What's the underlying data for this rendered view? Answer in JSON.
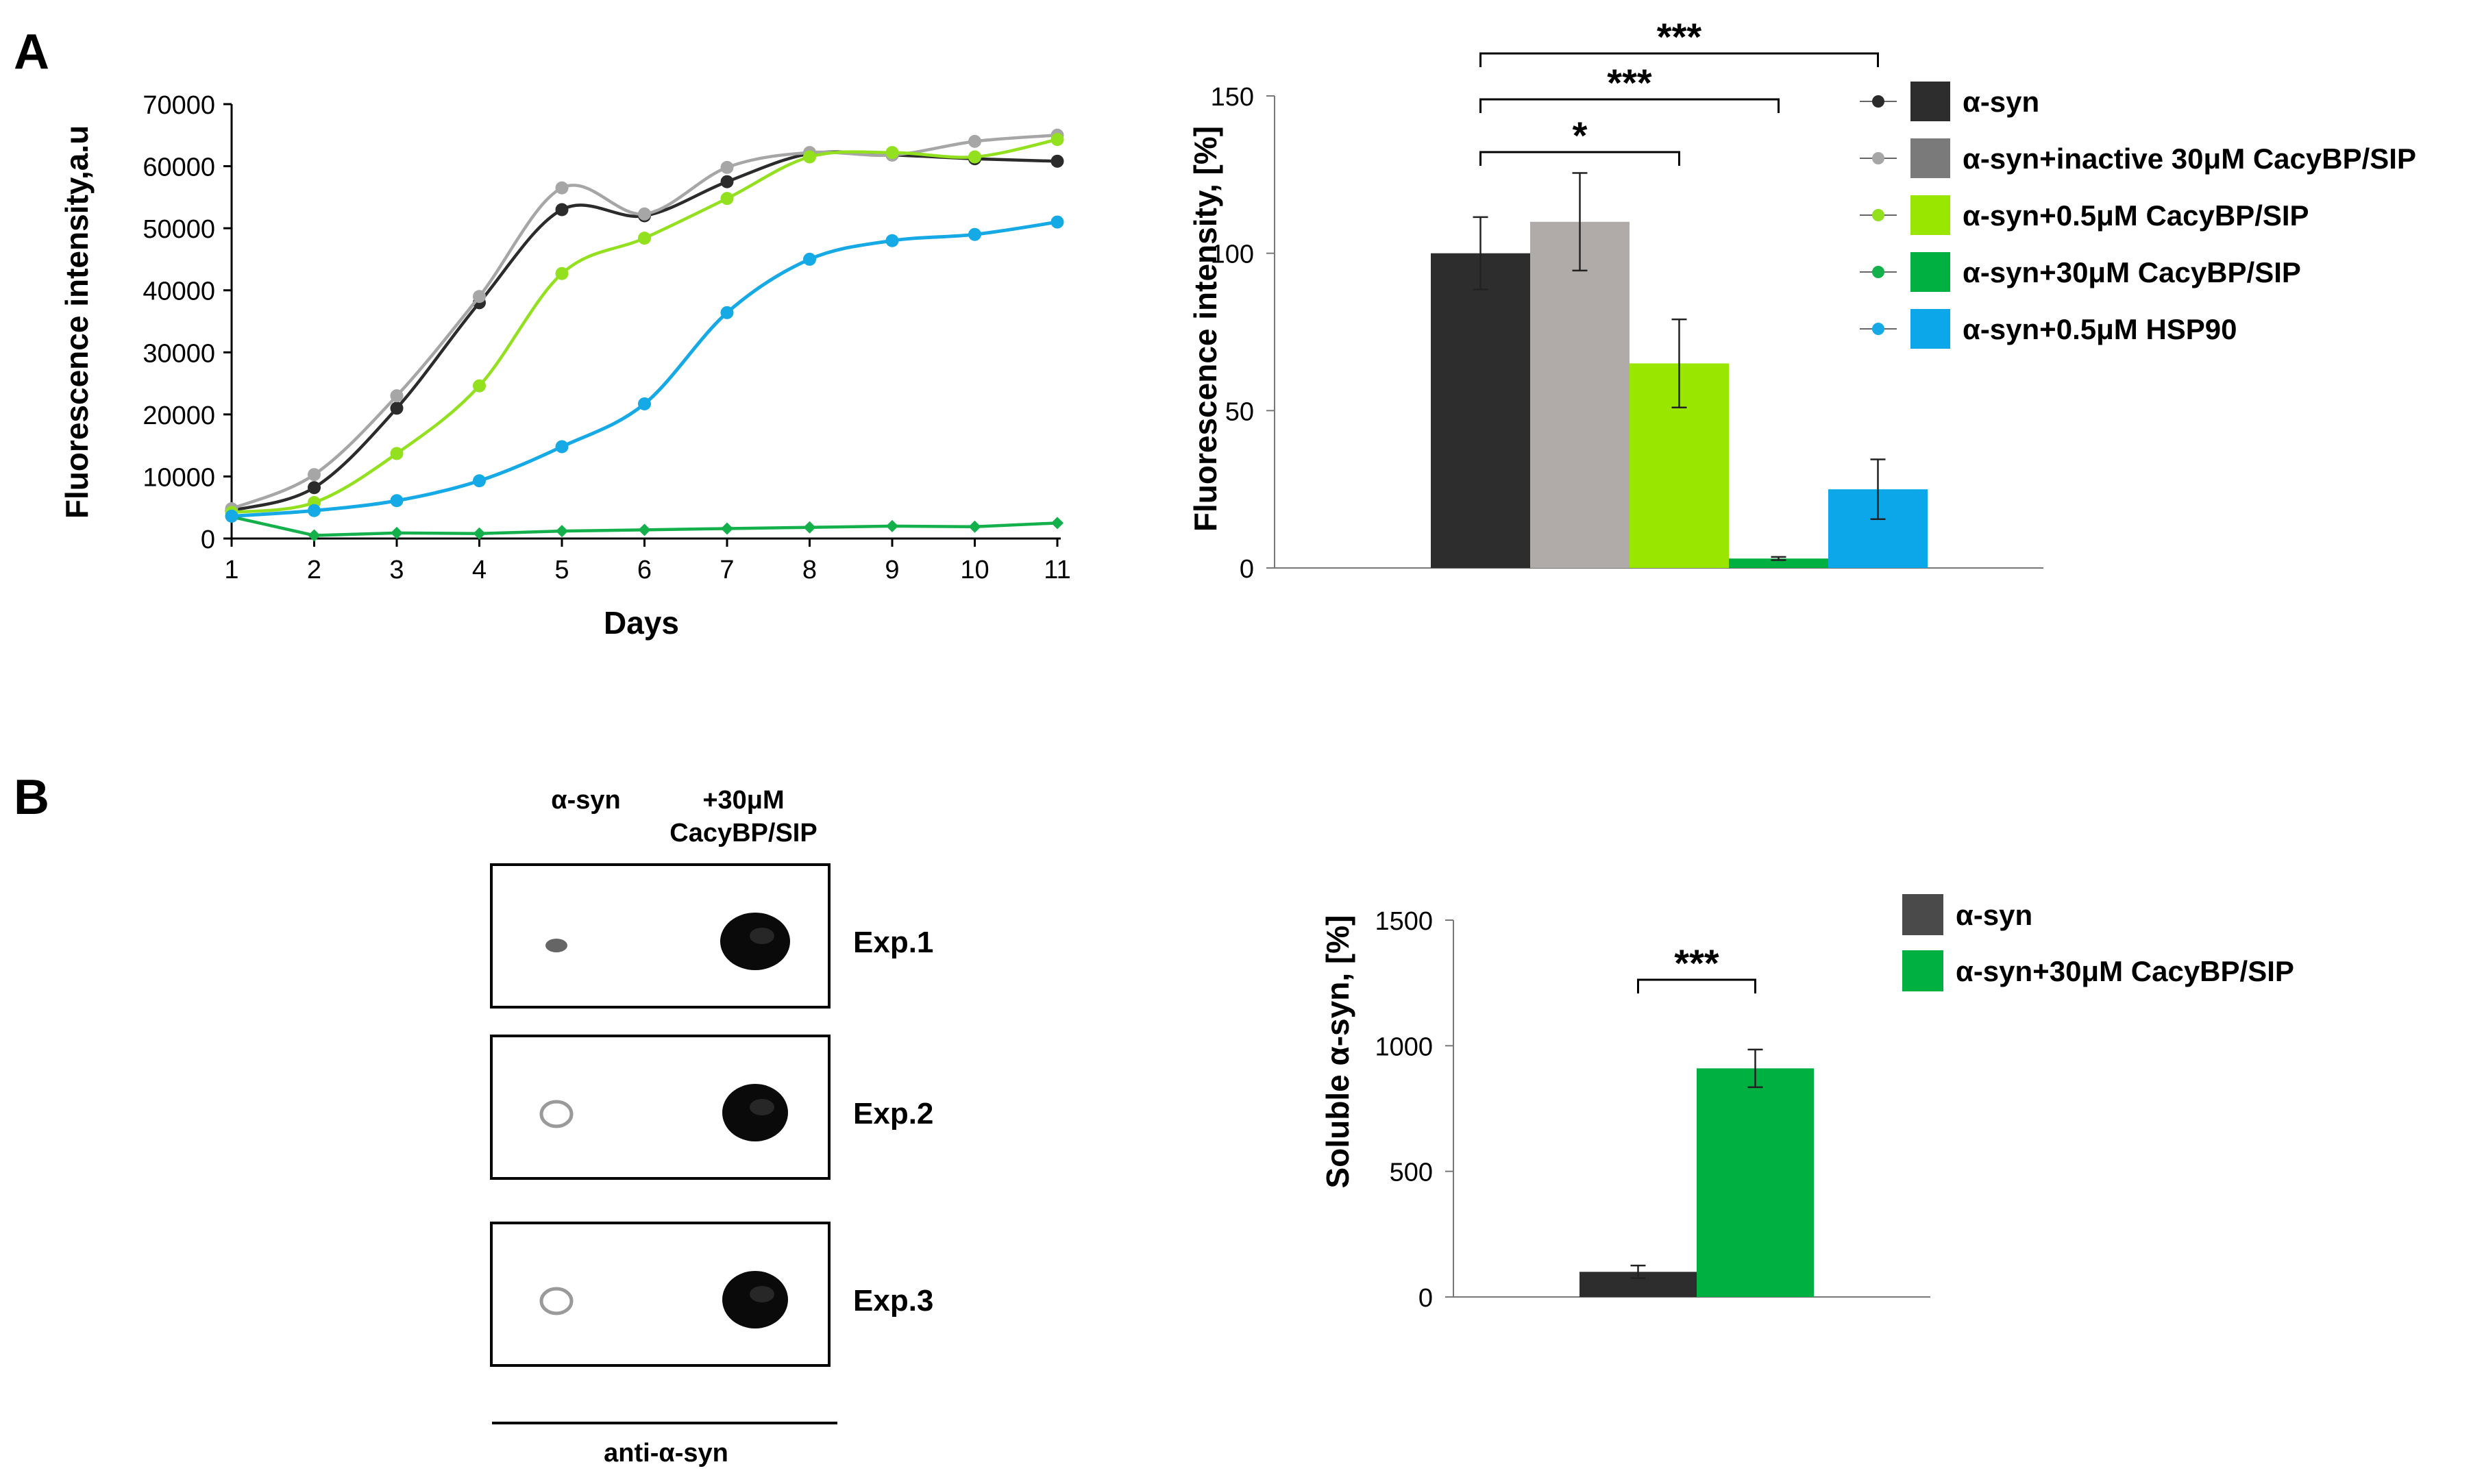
{
  "panel_labels": {
    "a": "A",
    "b": "B"
  },
  "colors": {
    "asyn": "#2b2b2b",
    "inactive": "#a6a6a6",
    "low": "#92e01e",
    "high": "#14b04c",
    "hsp90": "#15a9e6",
    "bar_asyn": "#2d2d2d",
    "bar_inactive": "#b0aba9",
    "bar_low": "#99e600",
    "bar_high": "#00b040",
    "bar_hsp90": "#0ba7e8",
    "legend_inactive": "#7a7a7a",
    "legend_asyn_b": "#4a4a4a"
  },
  "legend_top": [
    {
      "label": "α-syn",
      "key": "asyn"
    },
    {
      "label": "α-syn+inactive 30μM CacyBP/SIP",
      "key": "inactive"
    },
    {
      "label": "α-syn+0.5μM CacyBP/SIP",
      "key": "low"
    },
    {
      "label": "α-syn+30μM  CacyBP/SIP",
      "key": "high"
    },
    {
      "label": "α-syn+0.5μM HSP90",
      "key": "hsp90"
    }
  ],
  "blot": {
    "col1": "α-syn",
    "col2_line1": "+30μM",
    "col2_line2": "CacyBP/SIP",
    "rows": [
      "Exp.1",
      "Exp.2",
      "Exp.3"
    ],
    "footer": "anti-α-syn"
  },
  "chart_data": [
    {
      "id": "line",
      "type": "line",
      "xlabel": "Days",
      "ylabel": "Fluorescence intensity,a.u",
      "ylim": [
        0,
        70000
      ],
      "x": [
        1,
        2,
        3,
        4,
        5,
        6,
        7,
        8,
        9,
        10,
        11
      ],
      "yticks": [
        "0",
        "10000",
        "20000",
        "30000",
        "40000",
        "50000",
        "60000",
        "70000"
      ],
      "series": [
        {
          "name": "α-syn",
          "key": "asyn",
          "marker": "circle",
          "values": [
            4500,
            8200,
            21000,
            38000,
            53000,
            52000,
            57500,
            62000,
            61800,
            61200,
            60800
          ]
        },
        {
          "name": "α-syn+inactive 30μM CacyBP/SIP",
          "key": "inactive",
          "marker": "circle",
          "values": [
            4800,
            10300,
            23000,
            39000,
            56500,
            52300,
            59800,
            62200,
            61800,
            64000,
            65000
          ]
        },
        {
          "name": "α-syn+0.5μM CacyBP/SIP",
          "key": "low",
          "marker": "circle",
          "values": [
            4200,
            5800,
            13700,
            24600,
            42700,
            48400,
            54800,
            61500,
            62200,
            61500,
            64300
          ]
        },
        {
          "name": "α-syn+30μM CacyBP/SIP",
          "key": "high",
          "marker": "diamond",
          "values": [
            3500,
            500,
            900,
            800,
            1200,
            1400,
            1600,
            1800,
            2000,
            1900,
            2500
          ]
        },
        {
          "name": "α-syn+0.5μM HSP90",
          "key": "hsp90",
          "marker": "circle",
          "values": [
            3600,
            4500,
            6100,
            9300,
            14800,
            21700,
            36400,
            45000,
            48000,
            49000,
            51000
          ]
        }
      ]
    },
    {
      "id": "bar_top",
      "type": "bar",
      "ylabel": "Fluorescence intensity, [%]",
      "ylim": [
        0,
        150
      ],
      "yticks": [
        "0",
        "50",
        "100",
        "150"
      ],
      "categories": [
        "α-syn",
        "α-syn+inactive 30μM CacyBP/SIP",
        "α-syn+0.5μM CacyBP/SIP",
        "α-syn+30μM  CacyBP/SIP",
        "α-syn+0.5μM HSP90"
      ],
      "keys": [
        "bar_asyn",
        "bar_inactive",
        "bar_low",
        "bar_high",
        "bar_hsp90"
      ],
      "values": [
        100,
        110,
        65,
        3,
        25
      ],
      "errors": [
        11.5,
        15.5,
        14,
        0.5,
        9.5
      ],
      "significance": [
        {
          "from": 0,
          "to": 4,
          "label": "***"
        },
        {
          "from": 0,
          "to": 3,
          "label": "***"
        },
        {
          "from": 0,
          "to": 2,
          "label": "*"
        }
      ]
    },
    {
      "id": "bar_bottom",
      "type": "bar",
      "ylabel": "Soluble α-syn, [%]",
      "ylim": [
        0,
        1500
      ],
      "yticks": [
        "0",
        "500",
        "1000",
        "1500"
      ],
      "categories": [
        "α-syn",
        "α-syn+30μM CacyBP/SIP"
      ],
      "keys": [
        "bar_asyn",
        "bar_high"
      ],
      "legend_keys": [
        "legend_asyn_b",
        "bar_high"
      ],
      "values": [
        100,
        910
      ],
      "errors": [
        25,
        75
      ],
      "significance": [
        {
          "from": 0,
          "to": 1,
          "label": "***"
        }
      ]
    }
  ]
}
